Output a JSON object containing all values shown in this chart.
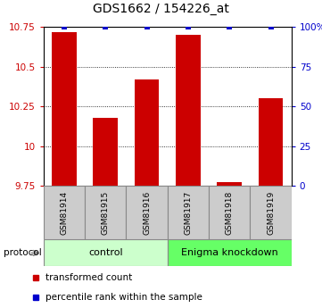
{
  "title": "GDS1662 / 154226_at",
  "samples": [
    "GSM81914",
    "GSM81915",
    "GSM81916",
    "GSM81917",
    "GSM81918",
    "GSM81919"
  ],
  "bar_values": [
    10.72,
    10.18,
    10.42,
    10.7,
    9.77,
    10.3
  ],
  "bar_bottom": 9.75,
  "percentile_values": [
    100,
    100,
    100,
    100,
    100,
    100
  ],
  "bar_color": "#cc0000",
  "dot_color": "#0000cc",
  "ylim_left": [
    9.75,
    10.75
  ],
  "ylim_right": [
    0,
    100
  ],
  "yticks_left": [
    9.75,
    10.0,
    10.25,
    10.5,
    10.75
  ],
  "ytick_labels_left": [
    "9.75",
    "10",
    "10.25",
    "10.5",
    "10.75"
  ],
  "yticks_right": [
    0,
    25,
    50,
    75,
    100
  ],
  "ytick_labels_right": [
    "0",
    "25",
    "50",
    "75",
    "100%"
  ],
  "gridlines_at": [
    10.0,
    10.25,
    10.5
  ],
  "control_label": "control",
  "knockdown_label": "Enigma knockdown",
  "protocol_label": "protocol",
  "legend_red": "transformed count",
  "legend_blue": "percentile rank within the sample",
  "bar_width": 0.6,
  "sample_box_color": "#cccccc",
  "control_box_color": "#ccffcc",
  "knockdown_box_color": "#66ff66"
}
